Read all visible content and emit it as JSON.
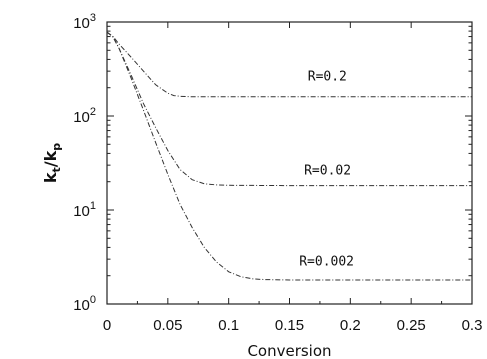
{
  "chart_data": {
    "type": "line",
    "title": "",
    "xlabel": "Conversion",
    "ylabel": {
      "main": "k",
      "sub1": "t",
      "sep": "/k",
      "sub2": "p"
    },
    "xlim": [
      0,
      0.3
    ],
    "ylim": [
      1,
      1000
    ],
    "yscale": "log",
    "x_ticks": [
      0,
      0.05,
      0.1,
      0.15,
      0.2,
      0.25,
      0.3
    ],
    "x_tick_labels": [
      "0",
      "0.05",
      "0.1",
      "0.15",
      "0.2",
      "0.25",
      "0.3"
    ],
    "y_ticks": [
      1,
      10,
      100,
      1000
    ],
    "y_tick_labels": [
      {
        "base": "10",
        "exp": "0"
      },
      {
        "base": "10",
        "exp": "1"
      },
      {
        "base": "10",
        "exp": "2"
      },
      {
        "base": "10",
        "exp": "3"
      }
    ],
    "grid": false,
    "series": [
      {
        "label": "R=0.2",
        "label_at": [
          0.165,
          270
        ],
        "x": [
          0,
          0.005,
          0.01,
          0.02,
          0.03,
          0.04,
          0.05,
          0.055,
          0.06,
          0.07,
          0.1,
          0.15,
          0.2,
          0.25,
          0.3
        ],
        "y": [
          780,
          700,
          580,
          420,
          300,
          215,
          175,
          165,
          162,
          160,
          160,
          160,
          160,
          160,
          160
        ]
      },
      {
        "label": "R=0.02",
        "label_at": [
          0.162,
          27
        ],
        "x": [
          0,
          0.005,
          0.01,
          0.02,
          0.03,
          0.04,
          0.05,
          0.06,
          0.07,
          0.08,
          0.09,
          0.1,
          0.15,
          0.2,
          0.25,
          0.3
        ],
        "y": [
          780,
          690,
          520,
          270,
          135,
          75,
          43,
          27,
          21,
          19,
          18.5,
          18.3,
          18.2,
          18.2,
          18.2,
          18.2
        ]
      },
      {
        "label": "R=0.002",
        "label_at": [
          0.158,
          2.9
        ],
        "x": [
          0,
          0.005,
          0.01,
          0.02,
          0.03,
          0.04,
          0.05,
          0.06,
          0.07,
          0.08,
          0.09,
          0.1,
          0.11,
          0.12,
          0.13,
          0.15,
          0.2,
          0.25,
          0.3
        ],
        "y": [
          780,
          690,
          520,
          250,
          115,
          52,
          24,
          11.5,
          6.5,
          4,
          2.8,
          2.2,
          1.95,
          1.85,
          1.82,
          1.8,
          1.8,
          1.8,
          1.8
        ]
      }
    ]
  }
}
